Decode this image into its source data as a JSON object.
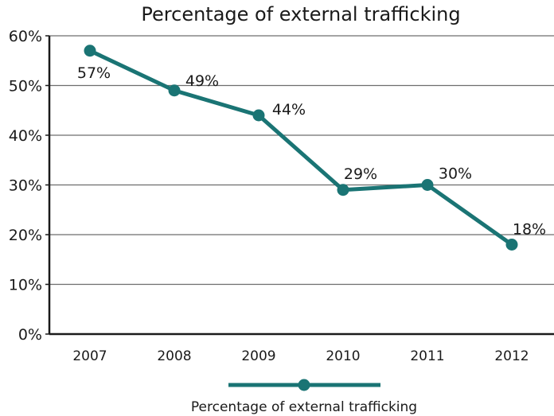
{
  "chart_data": {
    "type": "line",
    "title": "Percentage of external trafficking",
    "xlabel": "",
    "ylabel": "",
    "categories": [
      "2007",
      "2008",
      "2009",
      "2010",
      "2011",
      "2012"
    ],
    "series": [
      {
        "name": "Percentage of external trafficking",
        "values": [
          57,
          49,
          44,
          29,
          30,
          18
        ],
        "labels": [
          "57%",
          "49%",
          "44%",
          "29%",
          "30%",
          "18%"
        ],
        "color": "#1a7474"
      }
    ],
    "ylim": [
      0,
      60
    ],
    "yticks": [
      0,
      10,
      20,
      30,
      40,
      50,
      60
    ],
    "ytick_labels": [
      "0%",
      "10%",
      "20%",
      "30%",
      "40%",
      "50%",
      "60%"
    ],
    "grid": true,
    "legend_position": "bottom"
  }
}
